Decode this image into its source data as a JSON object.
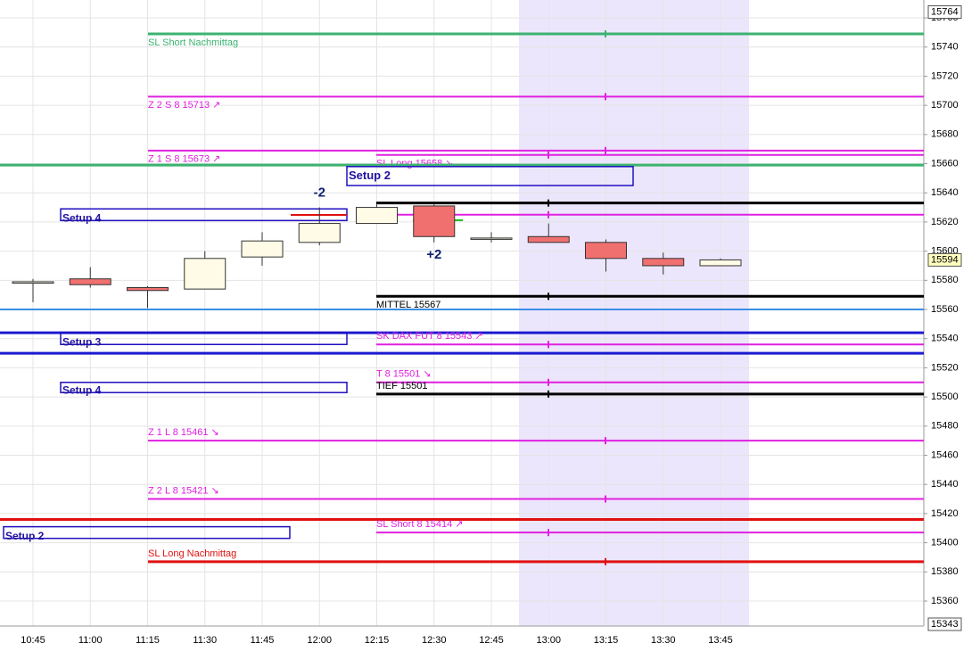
{
  "chart_data": {
    "type": "candlestick",
    "categories": [
      "10:45",
      "11:00",
      "11:15",
      "11:30",
      "11:45",
      "12:00",
      "12:15",
      "12:30",
      "12:45",
      "13:00",
      "13:15",
      "13:30",
      "13:45"
    ],
    "open": [
      15578,
      15581,
      15575,
      15574,
      15596,
      15606,
      15619,
      15631,
      15609,
      15610,
      15606,
      15595,
      15590
    ],
    "high": [
      15581,
      15589,
      15576,
      15600,
      15613,
      15630,
      15632,
      15632,
      15613,
      15619,
      15608,
      15599,
      15595
    ],
    "low": [
      15565,
      15575,
      15561,
      15574,
      15590,
      15604,
      15619,
      15606,
      15606,
      15606,
      15586,
      15584,
      15590
    ],
    "close": [
      15579,
      15577,
      15573,
      15595,
      15607,
      15619,
      15630,
      15610,
      15609,
      15606,
      15595,
      15590,
      15594
    ],
    "up_color": "#fffbe6",
    "down_color": "#f07070",
    "ylim": [
      15343,
      15764
    ],
    "yticks": [
      15360,
      15380,
      15400,
      15420,
      15440,
      15460,
      15480,
      15500,
      15520,
      15540,
      15560,
      15580,
      15600,
      15620,
      15640,
      15660,
      15680,
      15700,
      15720,
      15740,
      15760
    ],
    "grid": true,
    "price_labels": [
      15764,
      15594,
      15343
    ],
    "levels": [
      {
        "name": "SL Short Nachmittag",
        "value": 15749,
        "color": "#3cb371"
      },
      {
        "name": "Z 2 S 8 15713 ↗",
        "value": 15706,
        "color": "#e020e0"
      },
      {
        "name": "Z 1 S 8 15673 ↗",
        "value": 15669,
        "color": "#e020e0"
      },
      {
        "name": "SL Long 15658 ↘",
        "value": 15666,
        "color": "#e020e0"
      },
      {
        "value": 15659,
        "color": "#3cb371"
      },
      {
        "value": 15633,
        "color": "#000000"
      },
      {
        "value": 15625,
        "color": "#e020e0"
      },
      {
        "name": "MITTEL 15567",
        "value": 15569,
        "color": "#000000"
      },
      {
        "value": 15560,
        "color": "#3a8ee6"
      },
      {
        "value": 15544,
        "color": "#1a1ad0"
      },
      {
        "name": "SK DAX FUT 8 15543 ↗",
        "value": 15536,
        "color": "#e020e0"
      },
      {
        "value": 15530,
        "color": "#1a1ad0"
      },
      {
        "name": "T 8 15501 ↘",
        "value": 15510,
        "color": "#e020e0"
      },
      {
        "name": "TIEF 15501",
        "value": 15502,
        "color": "#000000"
      },
      {
        "name": "Z 1 L 8 15461 ↘",
        "value": 15470,
        "color": "#e020e0"
      },
      {
        "name": "Z 2 L 8 15421 ↘",
        "value": 15430,
        "color": "#e020e0"
      },
      {
        "value": 15416,
        "color": "#e01010"
      },
      {
        "name": "SL Short 8  15414 ↗",
        "value": 15407,
        "color": "#e020e0"
      },
      {
        "name": "SL Long Nachmittag",
        "value": 15387,
        "color": "#e01010"
      }
    ],
    "boxes": [
      {
        "label": "Setup 4",
        "high": 15629,
        "low": 15621
      },
      {
        "label": "Setup 3",
        "high": 15544,
        "low": 15536
      },
      {
        "label": "Setup 4",
        "high": 15510,
        "low": 15503
      },
      {
        "label": "Setup 2",
        "high": 15411,
        "low": 15403
      },
      {
        "label": "Setup 2",
        "high": 15658,
        "low": 15645
      }
    ],
    "annotations": [
      "-2",
      "+2"
    ]
  }
}
